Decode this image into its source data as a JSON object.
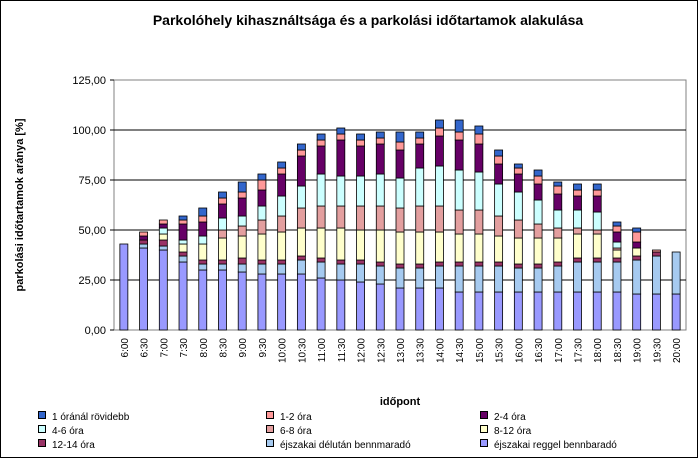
{
  "chart_data": {
    "type": "bar",
    "stacked": true,
    "title": "Parkolóhely kihasználtsága és a parkolási időtartamok alakulása",
    "xlabel": "időpont",
    "ylabel": "parkolási időtartamok aránya [%]",
    "ylim": [
      0,
      125
    ],
    "yticks": [
      "0,00",
      "25,00",
      "50,00",
      "75,00",
      "100,00",
      "125,00"
    ],
    "grid": "horizontal",
    "legend_position": "bottom",
    "categories": [
      "6:00",
      "6:30",
      "7:00",
      "7:30",
      "8:00",
      "8:30",
      "9:00",
      "9:30",
      "10:00",
      "10:30",
      "11:00",
      "11:30",
      "12:00",
      "12:30",
      "13:00",
      "13:30",
      "14:00",
      "14:30",
      "15:00",
      "15:30",
      "16:00",
      "16:30",
      "17:00",
      "17:30",
      "18:00",
      "18:30",
      "19:00",
      "19:30",
      "20:00"
    ],
    "series": [
      {
        "name": "éjszakai reggel bennbaradó",
        "color": "#9999ff",
        "values": [
          43,
          41,
          40,
          34,
          30,
          30,
          29,
          28,
          28,
          28,
          26,
          25,
          24,
          23,
          21,
          21,
          21,
          19,
          19,
          19,
          19,
          19,
          19,
          19,
          19,
          19,
          18,
          18,
          18
        ]
      },
      {
        "name": "éjszakai délután bennmaradó",
        "color": "#a6caf0",
        "values": [
          0,
          2,
          2,
          3,
          3,
          3,
          4,
          5,
          5,
          7,
          8,
          8,
          9,
          9,
          10,
          10,
          11,
          13,
          13,
          13,
          12,
          12,
          13,
          15,
          15,
          15,
          17,
          19,
          21
        ]
      },
      {
        "name": "12-14 óra",
        "color": "#993366",
        "values": [
          0,
          2,
          3,
          2,
          2,
          2,
          3,
          2,
          2,
          2,
          2,
          2,
          2,
          2,
          2,
          2,
          2,
          2,
          2,
          2,
          2,
          2,
          2,
          2,
          2,
          2,
          2,
          2,
          0
        ]
      },
      {
        "name": "8-12 óra",
        "color": "#ffffcc",
        "values": [
          0,
          0,
          3,
          4,
          8,
          11,
          11,
          13,
          14,
          14,
          15,
          16,
          15,
          16,
          16,
          16,
          15,
          14,
          14,
          13,
          13,
          13,
          12,
          12,
          12,
          4,
          4,
          0,
          0
        ]
      },
      {
        "name": "6-8 óra",
        "color": "#e39f9f",
        "values": [
          0,
          0,
          0,
          0,
          0,
          4,
          5,
          7,
          8,
          10,
          11,
          11,
          12,
          12,
          12,
          13,
          13,
          12,
          12,
          10,
          9,
          7,
          5,
          3,
          2,
          1,
          0,
          0,
          0
        ]
      },
      {
        "name": "4-6 óra",
        "color": "#ccffff",
        "values": [
          0,
          0,
          3,
          2,
          4,
          6,
          5,
          7,
          10,
          11,
          16,
          15,
          15,
          16,
          15,
          19,
          20,
          20,
          19,
          16,
          14,
          12,
          9,
          9,
          9,
          3,
          0,
          0,
          0
        ]
      },
      {
        "name": "2-4 óra",
        "color": "#660066",
        "values": [
          0,
          2,
          2,
          8,
          7,
          7,
          9,
          8,
          11,
          15,
          14,
          18,
          15,
          15,
          14,
          12,
          15,
          15,
          14,
          10,
          9,
          8,
          8,
          7,
          8,
          5,
          3,
          0,
          0
        ]
      },
      {
        "name": "1-2 óra",
        "color": "#ff9999",
        "values": [
          0,
          2,
          2,
          2,
          3,
          3,
          3,
          5,
          3,
          3,
          3,
          3,
          3,
          3,
          4,
          3,
          4,
          4,
          5,
          4,
          3,
          4,
          4,
          3,
          3,
          3,
          5,
          1,
          0
        ]
      },
      {
        "name": "1 óránál rövidebb",
        "color": "#3366cc",
        "values": [
          0,
          0,
          0,
          2,
          4,
          3,
          5,
          3,
          3,
          3,
          3,
          3,
          3,
          3,
          5,
          3,
          4,
          6,
          4,
          3,
          2,
          3,
          2,
          3,
          3,
          2,
          2,
          0,
          0
        ]
      }
    ],
    "legend_entries": [
      "1 óránál rövidebb",
      "1-2 óra",
      "2-4 óra",
      "4-6 óra",
      "6-8 óra",
      "8-12 óra",
      "12-14 óra",
      "éjszakai délután bennmaradó",
      "éjszakai reggel bennbaradó"
    ]
  }
}
